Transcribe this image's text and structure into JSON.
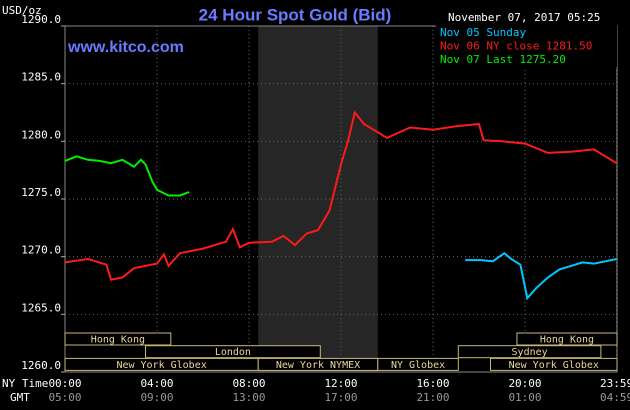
{
  "chart_data": {
    "type": "line",
    "title": "24 Hour Spot Gold (Bid)",
    "subtitle": "www.kitco.com",
    "timestamp": "November 07, 2017 05:25",
    "y_label": "USD/oz",
    "x_row_labels": [
      "NY Time",
      "GMT"
    ],
    "xlim": [
      0,
      24
    ],
    "ylim": [
      1260,
      1290
    ],
    "yticks": [
      {
        "value": 1260,
        "label": "1260.0"
      },
      {
        "value": 1265,
        "label": "1265.0"
      },
      {
        "value": 1270,
        "label": "1270.0"
      },
      {
        "value": 1275,
        "label": "1275.0"
      },
      {
        "value": 1280,
        "label": "1280.0"
      },
      {
        "value": 1285,
        "label": "1285.0"
      },
      {
        "value": 1290,
        "label": "1290.0"
      }
    ],
    "xticks": [
      {
        "value": 0,
        "label": "00:00"
      },
      {
        "value": 4,
        "label": "04:00"
      },
      {
        "value": 8,
        "label": "08:00"
      },
      {
        "value": 12,
        "label": "12:00"
      },
      {
        "value": 16,
        "label": "16:00"
      },
      {
        "value": 20,
        "label": "20:00"
      },
      {
        "value": 23.98,
        "label": "23:59"
      }
    ],
    "gmt_labels": [
      "05:00",
      "09:00",
      "13:00",
      "17:00",
      "21:00",
      "01:00",
      "04:59"
    ],
    "grid": true,
    "series": [
      {
        "name": "Nov 05 Sunday",
        "color": "#00c8ff",
        "x": [
          17.4,
          18.1,
          18.6,
          19.1,
          19.4,
          19.8,
          20.1,
          20.5,
          21.0,
          21.5,
          22.0,
          22.5,
          23.0,
          23.5,
          23.98
        ],
        "values": [
          1269.7,
          1269.7,
          1269.6,
          1270.3,
          1269.8,
          1269.3,
          1266.4,
          1267.3,
          1268.2,
          1268.9,
          1269.2,
          1269.5,
          1269.4,
          1269.6,
          1269.8
        ]
      },
      {
        "name": "Nov 06 NY close 1281.50",
        "color": "#ff1a1a",
        "x": [
          0,
          1,
          1.8,
          2.0,
          2.5,
          3,
          4,
          4.3,
          4.5,
          5,
          6,
          7,
          7.3,
          7.6,
          8,
          9,
          9.5,
          10,
          10.5,
          11,
          11.5,
          12,
          12.3,
          12.6,
          13,
          14,
          15,
          16,
          17,
          18,
          18.2,
          19,
          20,
          21,
          22,
          23,
          23.98
        ],
        "values": [
          1269.5,
          1269.8,
          1269.3,
          1268.0,
          1268.2,
          1269.0,
          1269.4,
          1270.2,
          1269.2,
          1270.3,
          1270.7,
          1271.3,
          1272.4,
          1270.8,
          1271.2,
          1271.3,
          1271.8,
          1271.0,
          1272.0,
          1272.3,
          1274.0,
          1278.0,
          1280.0,
          1282.5,
          1281.5,
          1280.3,
          1281.2,
          1281.0,
          1281.3,
          1281.5,
          1280.1,
          1280.0,
          1279.8,
          1279.0,
          1279.1,
          1279.3,
          1278.1
        ]
      },
      {
        "name": "Nov 07 Last 1275.20",
        "color": "#00ee00",
        "x": [
          0,
          0.5,
          1,
          1.5,
          2,
          2.5,
          3,
          3.3,
          3.5,
          3.8,
          4,
          4.5,
          5,
          5.4
        ],
        "values": [
          1278.3,
          1278.7,
          1278.4,
          1278.3,
          1278.1,
          1278.4,
          1277.8,
          1278.4,
          1278.0,
          1276.5,
          1275.8,
          1275.3,
          1275.3,
          1275.6
        ]
      }
    ],
    "session_rows": [
      [
        {
          "label": "Hong Kong",
          "start": 0,
          "end": 4.6
        },
        {
          "label": "Hong Kong",
          "start": 19.65,
          "end": 24
        }
      ],
      [
        {
          "label": "London",
          "start": 3.5,
          "end": 11.1
        },
        {
          "label": "Sydney",
          "start": 17.1,
          "end": 23.3
        }
      ],
      [
        {
          "label": "New York Globex",
          "start": 0,
          "end": 8.4
        },
        {
          "label": "New York NYMEX",
          "start": 8.4,
          "end": 13.6
        },
        {
          "label": "NY Globex",
          "start": 13.6,
          "end": 17.1
        },
        {
          "label": "New York Globex",
          "start": 18.5,
          "end": 24
        }
      ]
    ]
  }
}
